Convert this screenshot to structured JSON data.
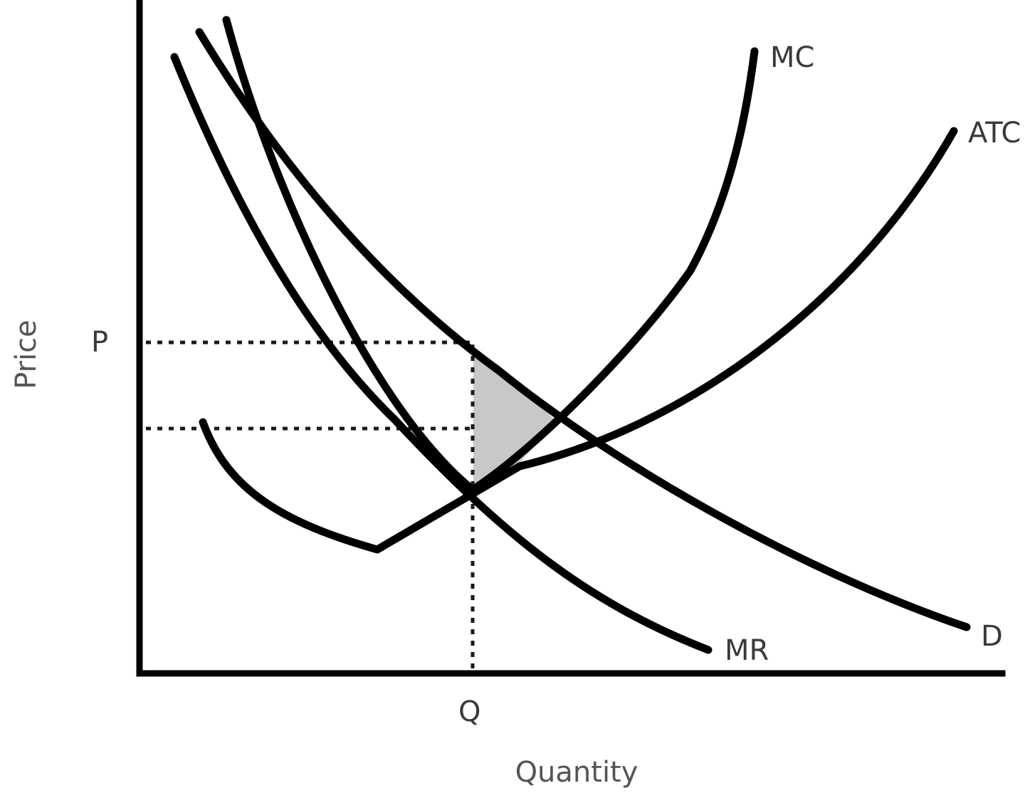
{
  "diagram": {
    "curve_labels": {
      "mc": "MC",
      "atc": "ATC",
      "mr": "MR",
      "d": "D"
    },
    "axis_labels": {
      "price": "Price",
      "quantity": "Quantity"
    },
    "point_labels": {
      "p": "P",
      "q": "Q"
    },
    "colors": {
      "curve": "#000000",
      "shaded_area": "#c8c8c8",
      "text": "#3a3a3a"
    }
  }
}
